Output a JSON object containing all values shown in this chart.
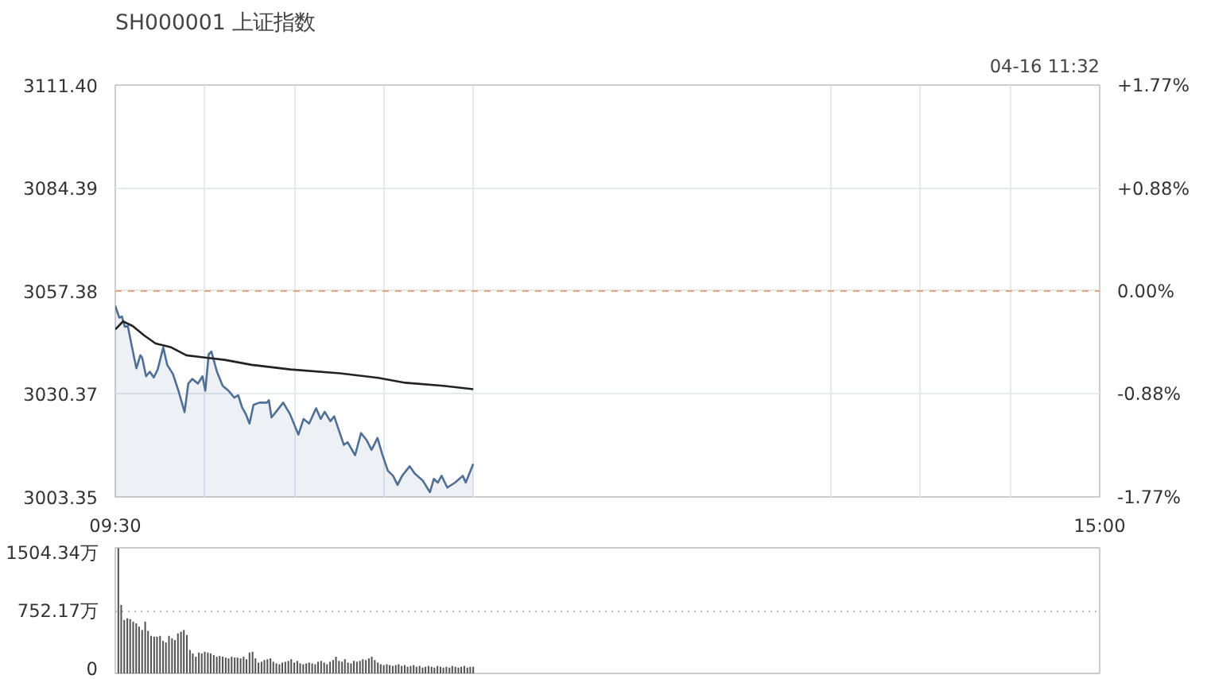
{
  "chart_data": [
    {
      "type": "line",
      "title": "SH000001 上证指数",
      "annotations": [
        "04-16 11:32"
      ],
      "xlim": [
        9.5,
        15
      ],
      "xticks": [
        {
          "value": 9.5,
          "label": "09:30"
        },
        {
          "value": 10,
          "label": null
        },
        {
          "value": 10.5,
          "label": null
        },
        {
          "value": 11,
          "label": null
        },
        {
          "value": 11.5,
          "label": null
        },
        {
          "value": 13.5,
          "label": null
        },
        {
          "value": 14,
          "label": null
        },
        {
          "value": 14.5,
          "label": null
        },
        {
          "value": 15,
          "label": "15:00"
        }
      ],
      "ylim": [
        3003.35,
        3111.4
      ],
      "yticks": [
        3003.35,
        3030.37,
        3057.38,
        3084.39,
        {
          "value": 3111.4,
          "label": "3111.40"
        }
      ],
      "y2lim": [
        -1.77,
        1.77
      ],
      "y2ticks": [
        {
          "value": -1.77,
          "label": "-1.77%"
        },
        {
          "value": -0.88,
          "label": "-0.88%"
        },
        {
          "value": 0,
          "label": "0.00%"
        },
        {
          "value": 0.88,
          "label": "+0.88%"
        },
        {
          "value": 1.77,
          "label": "+1.77%"
        }
      ],
      "grid": true,
      "ref_lines": [
        {
          "axis": "y",
          "value": 3057.38,
          "color": "#e8a07a",
          "line_style": "dashed"
        }
      ],
      "series": [
        {
          "type": "area",
          "color": "#4f6f94",
          "x": [
            9.5,
            9.522,
            9.537,
            9.553,
            9.57,
            9.592,
            9.618,
            9.64,
            9.65,
            9.672,
            9.693,
            9.715,
            9.737,
            9.768,
            9.79,
            9.822,
            9.853,
            9.887,
            9.908,
            9.93,
            9.962,
            9.987,
            10.003,
            10.022,
            10.037,
            10.068,
            10.1,
            10.133,
            10.165,
            10.187,
            10.208,
            10.23,
            10.25,
            10.272,
            10.305,
            10.347,
            10.358,
            10.373,
            10.402,
            10.438,
            10.477,
            10.523,
            10.552,
            10.583,
            10.622,
            10.648,
            10.67,
            10.702,
            10.723,
            10.777,
            10.798,
            10.84,
            10.873,
            10.905,
            10.932,
            10.965,
            10.992,
            11.023,
            11.052,
            11.077,
            11.103,
            11.145,
            11.173,
            11.217,
            11.258,
            11.28,
            11.302,
            11.323,
            11.355,
            11.398,
            11.442,
            11.458,
            11.5
          ],
          "values": [
            3053.5,
            3050.4,
            3050.7,
            3048.0,
            3048.2,
            3043.0,
            3037.1,
            3040.5,
            3039.9,
            3035.0,
            3036.2,
            3034.7,
            3036.8,
            3042.6,
            3038.0,
            3035.6,
            3031.2,
            3025.6,
            3033.1,
            3034.3,
            3033.1,
            3035.0,
            3031.2,
            3040.8,
            3041.5,
            3036.2,
            3032.5,
            3031.2,
            3029.4,
            3030.0,
            3026.9,
            3025.0,
            3022.6,
            3027.5,
            3028.1,
            3028.1,
            3028.7,
            3024.2,
            3025.9,
            3028.1,
            3025.0,
            3019.7,
            3023.8,
            3022.6,
            3026.6,
            3023.8,
            3025.7,
            3023.2,
            3024.5,
            3017.0,
            3017.7,
            3014.3,
            3020.1,
            3018.2,
            3015.7,
            3018.8,
            3014.5,
            3010.2,
            3008.9,
            3006.5,
            3008.9,
            3011.4,
            3009.5,
            3007.7,
            3004.6,
            3008.1,
            3007.1,
            3008.9,
            3005.8,
            3007.1,
            3008.9,
            3007.1,
            3012.0
          ]
        },
        {
          "type": "line",
          "color": "#222222",
          "x": [
            9.5,
            9.543,
            9.597,
            9.662,
            9.725,
            9.812,
            9.897,
            10.003,
            10.112,
            10.262,
            10.477,
            10.755,
            10.97,
            11.12,
            11.333,
            11.5
          ],
          "values": [
            3047.3,
            3049.4,
            3048.2,
            3045.7,
            3043.6,
            3042.6,
            3040.5,
            3039.9,
            3039.3,
            3038.0,
            3036.8,
            3035.8,
            3034.6,
            3033.3,
            3032.5,
            3031.6
          ]
        }
      ]
    },
    {
      "type": "bar",
      "tick_labels": "y",
      "grid": "y",
      "color": "#555555",
      "xlim": [
        9.5,
        15
      ],
      "ylim": [
        0,
        1504.34
      ],
      "yticks": [
        0,
        {
          "value": 752.17,
          "label": "752.17万"
        },
        {
          "value": 1504.34,
          "label": "1504.34万"
        }
      ],
      "x": [
        9.517,
        9.533,
        9.55,
        9.567,
        9.583,
        9.6,
        9.617,
        9.633,
        9.65,
        9.667,
        9.683,
        9.7,
        9.717,
        9.733,
        9.75,
        9.767,
        9.783,
        9.8,
        9.817,
        9.833,
        9.85,
        9.867,
        9.883,
        9.9,
        9.917,
        9.933,
        9.95,
        9.967,
        9.983,
        10,
        10.017,
        10.033,
        10.05,
        10.067,
        10.083,
        10.1,
        10.117,
        10.133,
        10.15,
        10.167,
        10.183,
        10.2,
        10.217,
        10.233,
        10.25,
        10.267,
        10.283,
        10.3,
        10.317,
        10.333,
        10.35,
        10.367,
        10.383,
        10.4,
        10.417,
        10.433,
        10.45,
        10.467,
        10.483,
        10.5,
        10.517,
        10.533,
        10.55,
        10.567,
        10.583,
        10.6,
        10.617,
        10.633,
        10.65,
        10.667,
        10.683,
        10.7,
        10.717,
        10.733,
        10.75,
        10.767,
        10.783,
        10.8,
        10.817,
        10.833,
        10.85,
        10.867,
        10.883,
        10.9,
        10.917,
        10.933,
        10.95,
        10.967,
        10.983,
        11,
        11.017,
        11.033,
        11.05,
        11.067,
        11.083,
        11.1,
        11.117,
        11.133,
        11.15,
        11.167,
        11.183,
        11.2,
        11.217,
        11.233,
        11.25,
        11.267,
        11.283,
        11.3,
        11.317,
        11.333,
        11.35,
        11.367,
        11.383,
        11.4,
        11.417,
        11.433,
        11.45,
        11.467,
        11.483,
        11.5
      ],
      "values": [
        1500,
        820,
        640,
        660,
        650,
        620,
        600,
        560,
        520,
        620,
        510,
        450,
        440,
        440,
        450,
        390,
        370,
        450,
        420,
        400,
        480,
        500,
        520,
        460,
        280,
        240,
        200,
        250,
        240,
        260,
        250,
        240,
        220,
        200,
        210,
        200,
        190,
        180,
        200,
        190,
        190,
        180,
        200,
        170,
        250,
        260,
        180,
        130,
        140,
        160,
        170,
        180,
        140,
        120,
        110,
        130,
        140,
        150,
        170,
        130,
        150,
        120,
        110,
        120,
        130,
        120,
        110,
        140,
        150,
        130,
        110,
        140,
        160,
        200,
        150,
        140,
        170,
        130,
        120,
        150,
        140,
        150,
        170,
        160,
        180,
        200,
        160,
        130,
        110,
        100,
        110,
        100,
        90,
        100,
        110,
        90,
        100,
        80,
        90,
        100,
        80,
        90,
        70,
        80,
        90,
        80,
        70,
        90,
        80,
        70,
        80,
        70,
        90,
        80,
        70,
        80,
        90,
        70,
        80,
        80
      ]
    }
  ]
}
